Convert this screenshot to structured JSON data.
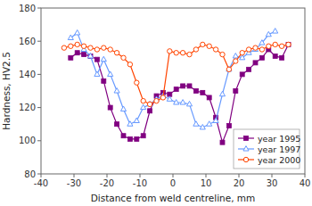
{
  "chart_data": {
    "type": "line",
    "xlabel": "Distance from weld centreline, mm",
    "ylabel": "Hardness, HV2.5",
    "xlim": [
      -40,
      40
    ],
    "ylim": [
      80,
      180
    ],
    "xticks": [
      -40,
      -30,
      -20,
      -10,
      0,
      10,
      20,
      30,
      40
    ],
    "yticks": [
      80,
      100,
      120,
      140,
      160,
      180
    ],
    "grid": false,
    "legend": "lower right",
    "series": [
      {
        "name": "year 1995",
        "color": "#800080",
        "marker": "square",
        "x": [
          -31,
          -29,
          -27,
          -25,
          -23,
          -21,
          -19,
          -17,
          -15,
          -13,
          -11,
          -9,
          -7,
          -5,
          -3,
          -1,
          1,
          3,
          5,
          7,
          9,
          11,
          13,
          15,
          17,
          19,
          21,
          23,
          25,
          27,
          29,
          31,
          33,
          35
        ],
        "values": [
          150,
          153,
          152,
          151,
          149,
          136,
          120,
          110,
          103,
          101,
          101,
          103,
          118,
          127,
          129,
          128,
          131,
          133,
          133,
          130,
          129,
          126,
          114,
          99,
          109,
          130,
          140,
          143,
          147,
          150,
          155,
          151,
          150,
          158
        ]
      },
      {
        "name": "year 1997",
        "color": "#6699FF",
        "marker": "triangle",
        "x": [
          -31,
          -29,
          -27,
          -25,
          -23,
          -21,
          -19,
          -17,
          -15,
          -13,
          -11,
          -9,
          -7,
          -5,
          -3,
          -1,
          1,
          3,
          5,
          7,
          9,
          11,
          13,
          15,
          17,
          19,
          21,
          23,
          25,
          27,
          29,
          31
        ],
        "values": [
          162,
          165,
          155,
          151,
          140,
          149,
          140,
          130,
          119,
          110,
          112,
          120,
          122,
          125,
          127,
          125,
          123,
          123,
          122,
          110,
          108,
          110,
          112,
          128,
          143,
          151,
          150,
          153,
          155,
          159,
          164,
          166
        ]
      },
      {
        "name": "year 2000",
        "color": "#FF4400",
        "marker": "circle",
        "x": [
          -33,
          -31,
          -29,
          -27,
          -25,
          -23,
          -21,
          -19,
          -17,
          -15,
          -13,
          -11,
          -9,
          -7,
          -5,
          -3,
          -1,
          1,
          3,
          5,
          7,
          9,
          11,
          13,
          15,
          17,
          19,
          21,
          23,
          25,
          27,
          29,
          31,
          33,
          35
        ],
        "values": [
          156,
          157,
          158,
          157,
          156,
          155,
          156,
          155,
          153,
          150,
          146,
          135,
          124,
          122,
          124,
          126,
          154,
          153,
          153,
          152,
          155,
          158,
          157,
          155,
          152,
          143,
          148,
          153,
          155,
          156,
          155,
          157,
          158,
          157,
          158
        ]
      }
    ]
  }
}
